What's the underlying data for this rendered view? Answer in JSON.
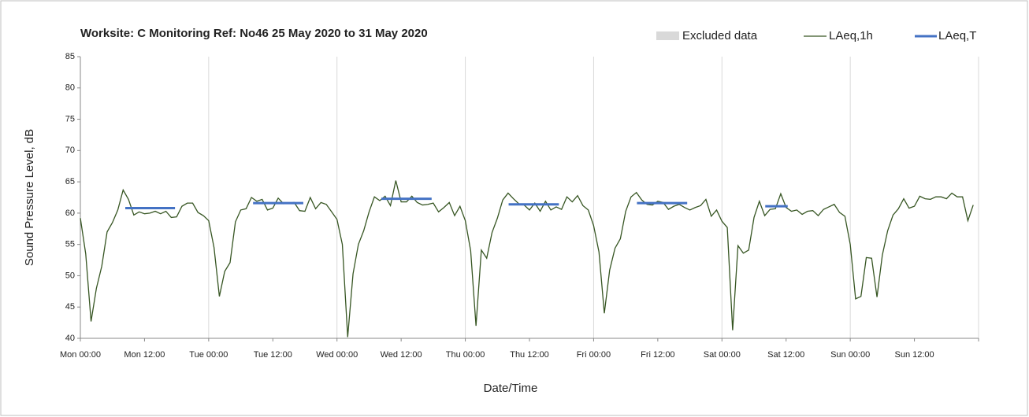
{
  "chart_data": {
    "type": "line",
    "title": "Worksite: C   Monitoring Ref: No46     25 May 2020 to 31 May 2020",
    "xlabel": "Date/Time",
    "ylabel": "Sound Pressure Level, dB",
    "xlim": [
      0,
      168
    ],
    "xticks": [
      {
        "value": 0,
        "label": "Mon 00:00"
      },
      {
        "value": 12,
        "label": "Mon 12:00"
      },
      {
        "value": 24,
        "label": "Tue 00:00"
      },
      {
        "value": 36,
        "label": "Tue 12:00"
      },
      {
        "value": 48,
        "label": "Wed 00:00"
      },
      {
        "value": 60,
        "label": "Wed 12:00"
      },
      {
        "value": 72,
        "label": "Thu 00:00"
      },
      {
        "value": 84,
        "label": "Thu 12:00"
      },
      {
        "value": 96,
        "label": "Fri 00:00"
      },
      {
        "value": 108,
        "label": "Fri 12:00"
      },
      {
        "value": 120,
        "label": "Sat 00:00"
      },
      {
        "value": 132,
        "label": "Sat 12:00"
      },
      {
        "value": 144,
        "label": "Sun 00:00"
      },
      {
        "value": 156,
        "label": "Sun 12:00"
      }
    ],
    "ylim": [
      40,
      85
    ],
    "yticks": [
      40,
      45,
      50,
      55,
      60,
      65,
      70,
      75,
      80,
      85
    ],
    "excluded_data": {
      "name": "Excluded data",
      "color": "#d9d9d9"
    },
    "series": [
      {
        "name": "LAeq,1h",
        "color": "#375623",
        "x": [
          0,
          1,
          2,
          3,
          4,
          5,
          6,
          7,
          8,
          9,
          10,
          11,
          12,
          13,
          14,
          15,
          16,
          17,
          18,
          19,
          20,
          21,
          22,
          23,
          24,
          25,
          26,
          27,
          28,
          29,
          30,
          31,
          32,
          33,
          34,
          35,
          36,
          37,
          38,
          39,
          40,
          41,
          42,
          43,
          44,
          45,
          46,
          47,
          48,
          49,
          50,
          51,
          52,
          53,
          54,
          55,
          56,
          57,
          58,
          59,
          60,
          61,
          62,
          63,
          64,
          65,
          66,
          67,
          68,
          69,
          70,
          71,
          72,
          73,
          74,
          75,
          76,
          77,
          78,
          79,
          80,
          81,
          82,
          83,
          84,
          85,
          86,
          87,
          88,
          89,
          90,
          91,
          92,
          93,
          94,
          95,
          96,
          97,
          98,
          99,
          100,
          101,
          102,
          103,
          104,
          105,
          106,
          107,
          108,
          109,
          110,
          111,
          112,
          113,
          114,
          115,
          116,
          117,
          118,
          119,
          120,
          121,
          122,
          123,
          124,
          125,
          126,
          127,
          128,
          129,
          130,
          131,
          132,
          133,
          134,
          135,
          136,
          137,
          138,
          139,
          140,
          141,
          142,
          143,
          144,
          145,
          146,
          147,
          148,
          149,
          150,
          151,
          152,
          153,
          154,
          155,
          156,
          157,
          158,
          159,
          160,
          161,
          162,
          163,
          164,
          165,
          166,
          167
        ],
        "values": [
          59.2,
          53.5,
          42.7,
          48,
          51.5,
          57,
          58.5,
          60.5,
          63.7,
          62.2,
          59.7,
          60.2,
          59.9,
          60,
          60.3,
          59.9,
          60.3,
          59.3,
          59.4,
          61.1,
          61.6,
          61.6,
          60.1,
          59.6,
          58.8,
          54.5,
          46.7,
          50.7,
          52.1,
          58.6,
          60.5,
          60.7,
          62.5,
          61.9,
          62.2,
          60.5,
          60.8,
          62.4,
          61.5,
          61.6,
          61.7,
          60.4,
          60.3,
          62.5,
          60.7,
          61.7,
          61.4,
          60.2,
          59,
          55,
          40.2,
          50.3,
          55,
          57.2,
          60.2,
          62.6,
          62,
          62.7,
          61.2,
          65.2,
          61.8,
          61.8,
          62.7,
          61.7,
          61.3,
          61.4,
          61.6,
          60.2,
          60.9,
          61.7,
          59.6,
          61.1,
          58.8,
          54,
          42,
          54.1,
          52.8,
          56.9,
          59.2,
          62.1,
          63.2,
          62.3,
          61.5,
          61.3,
          60.5,
          61.6,
          60.3,
          61.9,
          60.5,
          61,
          60.6,
          62.6,
          61.8,
          62.8,
          61.2,
          60.5,
          58,
          53.8,
          44,
          50.9,
          54.4,
          55.9,
          60.3,
          62.6,
          63.3,
          62.1,
          61.4,
          61.3,
          61.9,
          61.7,
          60.6,
          61.1,
          61.4,
          60.9,
          60.5,
          60.9,
          61.2,
          62.2,
          59.5,
          60.5,
          58.7,
          57.7,
          41.3,
          54.8,
          53.6,
          54.1,
          59.3,
          61.9,
          59.6,
          60.6,
          60.7,
          63.1,
          60.9,
          60.3,
          60.5,
          59.8,
          60.3,
          60.4,
          59.6,
          60.6,
          61,
          61.4,
          60.1,
          59.5,
          55,
          46.3,
          46.7,
          52.9,
          52.8,
          46.6,
          53.3,
          57.2,
          59.7,
          60.7,
          62.3,
          60.8,
          61.1,
          62.7,
          62.3,
          62.2,
          62.6,
          62.6,
          62.3,
          63.2,
          62.6,
          62.6,
          58.8,
          61.3
        ]
      },
      {
        "name": "LAeq,T",
        "color": "#4472c4",
        "x_ranges": [
          [
            8.4,
            17.7
          ],
          [
            32.3,
            41.7
          ],
          [
            56.3,
            65.7
          ],
          [
            80.1,
            89.5
          ],
          [
            104.1,
            113.5
          ],
          [
            128.1,
            132.3
          ]
        ],
        "values": [
          60.8,
          61.6,
          62.3,
          61.4,
          61.6,
          61.1
        ]
      }
    ]
  }
}
